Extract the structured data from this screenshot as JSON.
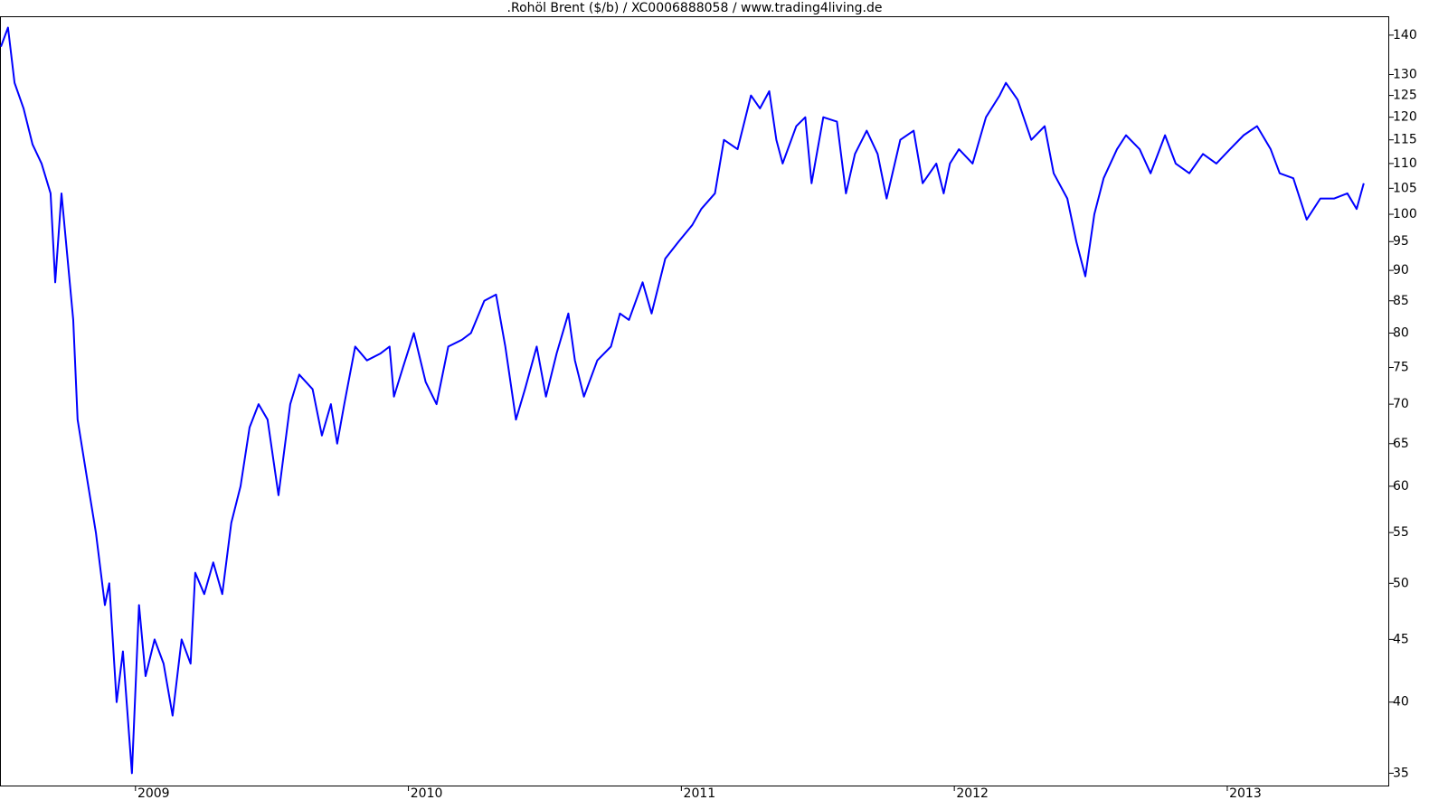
{
  "chart_data": {
    "type": "line",
    "title": ".Rohöl Brent ($/b) / XC0006888058 / www.trading4living.de",
    "color": "#0000ff",
    "log_scale": true,
    "grid": false,
    "xlim": [
      2008.507,
      2013.59
    ],
    "xticks": [
      2009,
      2010,
      2011,
      2012,
      2013
    ],
    "ylim": [
      34.2,
      144.8
    ],
    "yticks": [
      35,
      40,
      45,
      50,
      55,
      60,
      65,
      70,
      75,
      80,
      85,
      90,
      95,
      100,
      105,
      110,
      115,
      120,
      125,
      130,
      140
    ],
    "x": [
      2008.507,
      2008.533,
      2008.557,
      2008.59,
      2008.623,
      2008.656,
      2008.689,
      2008.706,
      2008.729,
      2008.772,
      2008.788,
      2008.822,
      2008.855,
      2008.888,
      2008.904,
      2008.931,
      2008.954,
      2008.987,
      2009.013,
      2009.037,
      2009.07,
      2009.103,
      2009.136,
      2009.169,
      2009.202,
      2009.219,
      2009.252,
      2009.285,
      2009.318,
      2009.351,
      2009.385,
      2009.418,
      2009.451,
      2009.484,
      2009.524,
      2009.567,
      2009.6,
      2009.649,
      2009.683,
      2009.716,
      2009.739,
      2009.765,
      2009.805,
      2009.848,
      2009.898,
      2009.931,
      2009.947,
      2009.98,
      2010.02,
      2010.063,
      2010.103,
      2010.146,
      2010.196,
      2010.229,
      2010.278,
      2010.321,
      2010.355,
      2010.394,
      2010.427,
      2010.47,
      2010.504,
      2010.543,
      2010.586,
      2010.61,
      2010.643,
      2010.692,
      2010.742,
      2010.775,
      2010.808,
      2010.858,
      2010.891,
      2010.941,
      2010.99,
      2011.04,
      2011.073,
      2011.123,
      2011.156,
      2011.206,
      2011.255,
      2011.288,
      2011.322,
      2011.348,
      2011.371,
      2011.421,
      2011.454,
      2011.477,
      2011.52,
      2011.57,
      2011.603,
      2011.636,
      2011.679,
      2011.719,
      2011.752,
      2011.802,
      2011.851,
      2011.884,
      2011.934,
      2011.961,
      2011.984,
      2012.017,
      2012.067,
      2012.116,
      2012.166,
      2012.189,
      2012.232,
      2012.282,
      2012.331,
      2012.364,
      2012.414,
      2012.447,
      2012.48,
      2012.513,
      2012.547,
      2012.596,
      2012.629,
      2012.679,
      2012.719,
      2012.772,
      2012.811,
      2012.861,
      2012.911,
      2012.96,
      2013.01,
      2013.06,
      2013.109,
      2013.159,
      2013.192,
      2013.242,
      2013.291,
      2013.341,
      2013.391,
      2013.44,
      2013.474,
      2013.5
    ],
    "values": [
      137,
      142,
      128,
      122,
      114,
      110,
      104,
      88,
      104,
      82,
      68,
      61,
      55,
      48,
      50,
      40,
      44,
      35,
      48,
      42,
      45,
      43,
      39,
      45,
      43,
      51,
      49,
      52,
      49,
      56,
      60,
      67,
      70,
      68,
      59,
      70,
      74,
      72,
      66,
      70,
      65,
      70,
      78,
      76,
      77,
      78,
      71,
      75,
      80,
      73,
      70,
      78,
      79,
      80,
      85,
      86,
      78,
      68,
      72,
      78,
      71,
      77,
      83,
      76,
      71,
      76,
      78,
      83,
      82,
      88,
      83,
      92,
      95,
      98,
      101,
      104,
      115,
      113,
      125,
      122,
      126,
      115,
      110,
      118,
      120,
      106,
      120,
      119,
      104,
      112,
      117,
      112,
      103,
      115,
      117,
      106,
      110,
      104,
      110,
      113,
      110,
      120,
      125,
      128,
      124,
      115,
      118,
      108,
      103,
      95,
      89,
      100,
      107,
      113,
      116,
      113,
      108,
      116,
      110,
      108,
      112,
      110,
      113,
      116,
      118,
      113,
      108,
      107,
      99,
      103,
      103,
      104,
      101,
      106
    ]
  }
}
